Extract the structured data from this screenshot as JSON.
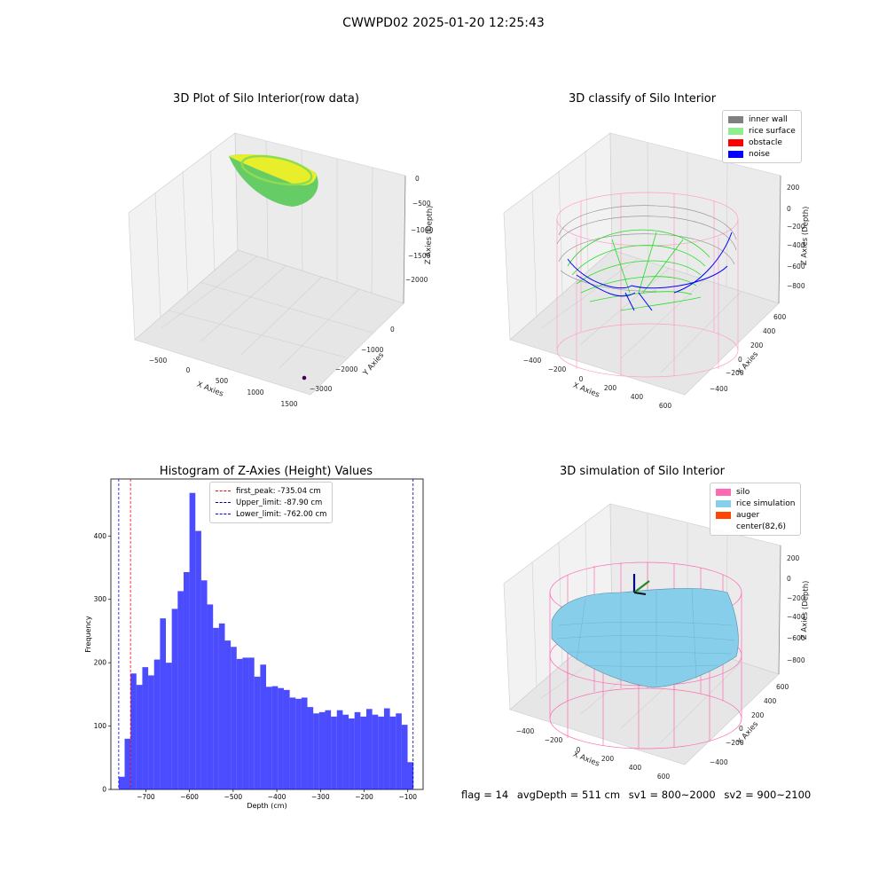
{
  "suptitle": "CWWPD02 2025-01-20 12:25:43",
  "panels": {
    "raw": {
      "title": "3D Plot of Silo Interior(row data)",
      "xlabel": "X Axies",
      "ylabel": "Y Axies",
      "zlabel": "Z Axies (Depth)",
      "xticks": [
        "-500",
        "0",
        "500",
        "1000",
        "1500"
      ],
      "yticks": [
        "0",
        "-1000",
        "-2000",
        "-3000"
      ],
      "zticks": [
        "0",
        "-500",
        "-1000",
        "-1500",
        "-2000"
      ]
    },
    "classify": {
      "title": "3D classify of Silo Interior",
      "xlabel": "X Axies",
      "ylabel": "Y Axies",
      "zlabel": "Z Axies (Depth)",
      "xticks": [
        "-400",
        "-200",
        "0",
        "200",
        "400",
        "600"
      ],
      "yticks": [
        "600",
        "400",
        "200",
        "0",
        "-200",
        "-400"
      ],
      "zticks": [
        "200",
        "0",
        "-200",
        "-400",
        "-600",
        "-800"
      ],
      "legend": [
        {
          "label": "inner wall",
          "color": "#808080"
        },
        {
          "label": "rice surface",
          "color": "#90ee90"
        },
        {
          "label": "obstacle",
          "color": "#ff0000"
        },
        {
          "label": "noise",
          "color": "#0000ff"
        }
      ]
    },
    "simulation": {
      "title": "3D simulation of Silo Interior",
      "xlabel": "X Axies",
      "ylabel": "Y Axies",
      "zlabel": "Z Axies (Depth)",
      "xticks": [
        "-400",
        "-200",
        "0",
        "200",
        "400",
        "600"
      ],
      "yticks": [
        "600",
        "400",
        "200",
        "0",
        "-200",
        "-400"
      ],
      "zticks": [
        "200",
        "0",
        "-200",
        "-400",
        "-600",
        "-800"
      ],
      "legend": [
        {
          "label": "silo",
          "color": "#ff69b4"
        },
        {
          "label": "rice simulation",
          "color": "#87ceeb"
        },
        {
          "label": "auger",
          "color": "#ff4500"
        },
        {
          "label": "center(82,6)",
          "color": ""
        }
      ]
    }
  },
  "chart_data": {
    "type": "bar",
    "title": "Histogram of Z-Axies (Height) Values",
    "xlabel": "Depth (cm)",
    "ylabel": "Frequency",
    "xlim": [
      -780,
      -65
    ],
    "ylim": [
      0,
      490
    ],
    "xticks": [
      -700,
      -600,
      -500,
      -400,
      -300,
      -200,
      -100
    ],
    "yticks": [
      0,
      100,
      200,
      300,
      400
    ],
    "bar_color": "#0000ff",
    "bin_edges_start": -762,
    "bin_width": 13.5,
    "values": [
      20,
      80,
      183,
      165,
      193,
      180,
      205,
      270,
      200,
      285,
      313,
      343,
      468,
      408,
      330,
      292,
      255,
      262,
      235,
      225,
      206,
      208,
      208,
      178,
      197,
      162,
      163,
      160,
      157,
      145,
      143,
      145,
      130,
      120,
      122,
      125,
      115,
      125,
      118,
      112,
      122,
      115,
      127,
      118,
      115,
      128,
      115,
      120,
      102,
      43
    ],
    "reference_lines": [
      {
        "label": "first_peak: -735.04 cm",
        "value": -735.04,
        "color": "#ff0000"
      },
      {
        "label": "Upper_limit: -87.90 cm",
        "value": -87.9,
        "color": "#00008b"
      },
      {
        "label": "Lower_limit: -762.00 cm",
        "value": -762.0,
        "color": "#0000ff"
      }
    ],
    "legend_position": "top-center"
  },
  "footer": {
    "flag": "flag = 14",
    "avg": "avgDepth = 511 cm",
    "sv1": "sv1 = 800~2000",
    "sv2": "sv2 = 900~2100"
  }
}
